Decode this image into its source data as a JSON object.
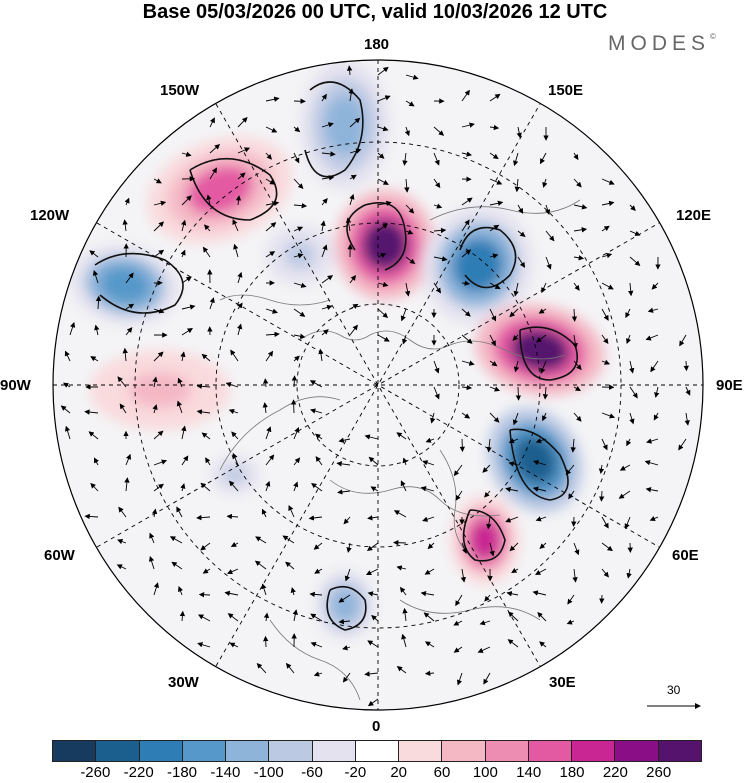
{
  "title": "Base 05/03/2026 00 UTC, valid 10/03/2026 12 UTC",
  "brand": "MODES",
  "brand_mark": "©",
  "longitude_labels": {
    "top": "180",
    "bottom": "0",
    "left": "90W",
    "right": "90E",
    "upper_left_1": "150W",
    "upper_left_2": "120W",
    "upper_right_1": "150E",
    "upper_right_2": "120E",
    "lower_left_1": "60W",
    "lower_left_2": "30W",
    "lower_right_1": "60E",
    "lower_right_2": "30E"
  },
  "vector_reference": "30",
  "colorbar": {
    "ticks": [
      "-260",
      "-220",
      "-180",
      "-140",
      "-100",
      "-60",
      "-20",
      "20",
      "60",
      "100",
      "140",
      "180",
      "220",
      "260"
    ],
    "colors": [
      "#173b5e",
      "#1b5f8f",
      "#2e7db5",
      "#5598c9",
      "#8eb4da",
      "#bcc9e3",
      "#e4e2ef",
      "#ffffff",
      "#f9dadd",
      "#f4b8c5",
      "#ee8db2",
      "#e35aa3",
      "#c92593",
      "#8a0f86",
      "#55136e"
    ]
  },
  "anomalies": [
    {
      "name": "anomaly-north-pacific-pos",
      "value": 140
    },
    {
      "name": "anomaly-bering-neg",
      "value": -140
    },
    {
      "name": "anomaly-chukchi-pos",
      "value": 260
    },
    {
      "name": "anomaly-east-siberia-neg",
      "value": -220
    },
    {
      "name": "anomaly-siberia-pos",
      "value": 260
    },
    {
      "name": "anomaly-ural-neg",
      "value": -260
    },
    {
      "name": "anomaly-scandinavia-pos",
      "value": 180
    },
    {
      "name": "anomaly-alaska-neg",
      "value": -180
    },
    {
      "name": "anomaly-hudson-neg",
      "value": -100
    },
    {
      "name": "anomaly-atlantic-neg",
      "value": -140
    },
    {
      "name": "anomaly-canada-pos",
      "value": 60
    },
    {
      "name": "anomaly-labrador-neg",
      "value": -100
    }
  ]
}
